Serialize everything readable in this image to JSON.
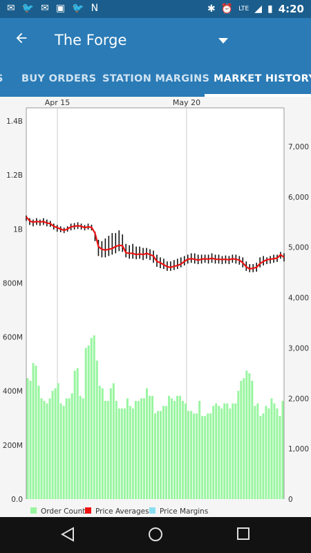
{
  "status_bar": {
    "left_icons": [
      "gmail-icon",
      "twitter-icon",
      "gmail-icon",
      "image-icon",
      "twitter-icon",
      "nvidia-icon"
    ],
    "network_label": "LTE",
    "time": "4:20"
  },
  "app_bar": {
    "back_icon": "arrow-left-icon",
    "title": "The Forge",
    "dropdown_icon": "triangle-down-icon"
  },
  "tabs": [
    {
      "label": "S",
      "active": false
    },
    {
      "label": "BUY ORDERS",
      "active": false
    },
    {
      "label": "STATION MARGINS",
      "active": false
    },
    {
      "label": "MARKET HISTORY",
      "active": true
    }
  ],
  "chart_data": {
    "type": "bar+line",
    "x_tick_labels": [
      "Apr 15",
      "May 20"
    ],
    "left_axis": {
      "labels": [
        "0.0",
        "200M",
        "400M",
        "600M",
        "800M",
        "1B",
        "1.2B",
        "1.4B"
      ],
      "values": [
        0,
        200000000,
        400000000,
        600000000,
        800000000,
        1000000000,
        1200000000,
        1400000000
      ]
    },
    "right_axis": {
      "labels": [
        "0",
        "1,000",
        "2,000",
        "3,000",
        "4,000",
        "5,000",
        "6,000",
        "7,000"
      ],
      "values": [
        0,
        1000,
        2000,
        3000,
        4000,
        5000,
        6000,
        7000
      ]
    },
    "legend": [
      {
        "name": "Order Count",
        "color": "#99f5a0"
      },
      {
        "name": "Price Averages",
        "color": "#ee1111"
      },
      {
        "name": "Price Margins",
        "color": "#88ddf0"
      }
    ],
    "order_count": [
      2400,
      2350,
      2700,
      2650,
      2250,
      2000,
      1950,
      1900,
      2000,
      2150,
      2200,
      2300,
      1900,
      1850,
      2000,
      2000,
      2100,
      2550,
      2600,
      2050,
      2000,
      3000,
      3050,
      3200,
      3250,
      2750,
      2250,
      2200,
      1950,
      1950,
      2200,
      2300,
      1950,
      1800,
      1800,
      1800,
      2000,
      1850,
      1800,
      1950,
      1950,
      2000,
      2000,
      2200,
      2050,
      2050,
      1700,
      1750,
      1750,
      1850,
      1850,
      2050,
      2000,
      1950,
      2050,
      2050,
      1950,
      1900,
      1750,
      1750,
      1700,
      1700,
      1950,
      1650,
      1650,
      1700,
      1700,
      1850,
      1900,
      1850,
      1800,
      1900,
      1900,
      1800,
      1900,
      1900,
      2150,
      2350,
      2400,
      2550,
      2500,
      2350,
      1850,
      1900,
      1650,
      1700,
      1850,
      1800,
      2000,
      1900,
      1800,
      1650,
      1950
    ],
    "price_avg": [
      1045000000,
      1030000000,
      1025000000,
      1028000000,
      1026000000,
      1028000000,
      1022000000,
      1020000000,
      1010000000,
      1005000000,
      1000000000,
      995000000,
      1000000000,
      1008000000,
      1010000000,
      1012000000,
      1010000000,
      1005000000,
      1008000000,
      1006000000,
      985000000,
      935000000,
      925000000,
      922000000,
      925000000,
      928000000,
      935000000,
      940000000,
      938000000,
      912000000,
      910000000,
      910000000,
      905000000,
      908000000,
      905000000,
      910000000,
      905000000,
      900000000,
      880000000,
      875000000,
      868000000,
      860000000,
      858000000,
      862000000,
      865000000,
      870000000,
      880000000,
      888000000,
      890000000,
      888000000,
      885000000,
      888000000,
      890000000,
      888000000,
      892000000,
      888000000,
      888000000,
      887000000,
      888000000,
      886000000,
      890000000,
      888000000,
      885000000,
      875000000,
      860000000,
      852000000,
      855000000,
      858000000,
      872000000,
      880000000,
      886000000,
      888000000,
      890000000,
      892000000,
      905000000,
      895000000
    ],
    "price_hi": [
      1050000000,
      1040000000,
      1035000000,
      1040000000,
      1035000000,
      1040000000,
      1035000000,
      1030000000,
      1020000000,
      1015000000,
      1010000000,
      1005000000,
      1010000000,
      1020000000,
      1022000000,
      1025000000,
      1020000000,
      1015000000,
      1020000000,
      1016000000,
      990000000,
      960000000,
      955000000,
      965000000,
      975000000,
      985000000,
      985000000,
      995000000,
      980000000,
      945000000,
      940000000,
      945000000,
      935000000,
      935000000,
      930000000,
      930000000,
      925000000,
      920000000,
      905000000,
      895000000,
      890000000,
      880000000,
      880000000,
      885000000,
      890000000,
      895000000,
      900000000,
      905000000,
      910000000,
      910000000,
      905000000,
      905000000,
      905000000,
      905000000,
      910000000,
      905000000,
      905000000,
      900000000,
      902000000,
      900000000,
      905000000,
      905000000,
      900000000,
      895000000,
      880000000,
      870000000,
      870000000,
      875000000,
      895000000,
      900000000,
      895000000,
      900000000,
      905000000,
      905000000,
      915000000,
      910000000
    ],
    "price_lo": [
      1030000000,
      1015000000,
      1010000000,
      1015000000,
      1012000000,
      1015000000,
      1010000000,
      1008000000,
      998000000,
      990000000,
      988000000,
      985000000,
      990000000,
      995000000,
      998000000,
      1000000000,
      998000000,
      995000000,
      998000000,
      995000000,
      955000000,
      900000000,
      895000000,
      895000000,
      900000000,
      905000000,
      910000000,
      918000000,
      915000000,
      895000000,
      890000000,
      890000000,
      888000000,
      890000000,
      885000000,
      890000000,
      885000000,
      875000000,
      860000000,
      855000000,
      852000000,
      845000000,
      845000000,
      848000000,
      852000000,
      858000000,
      865000000,
      872000000,
      875000000,
      872000000,
      870000000,
      872000000,
      875000000,
      872000000,
      875000000,
      872000000,
      872000000,
      870000000,
      872000000,
      870000000,
      875000000,
      872000000,
      868000000,
      858000000,
      845000000,
      840000000,
      840000000,
      842000000,
      858000000,
      865000000,
      870000000,
      872000000,
      875000000,
      878000000,
      890000000,
      880000000
    ]
  },
  "nav_bar": {
    "buttons": [
      "back-triangle-icon",
      "home-circle-icon",
      "recents-square-icon"
    ]
  }
}
